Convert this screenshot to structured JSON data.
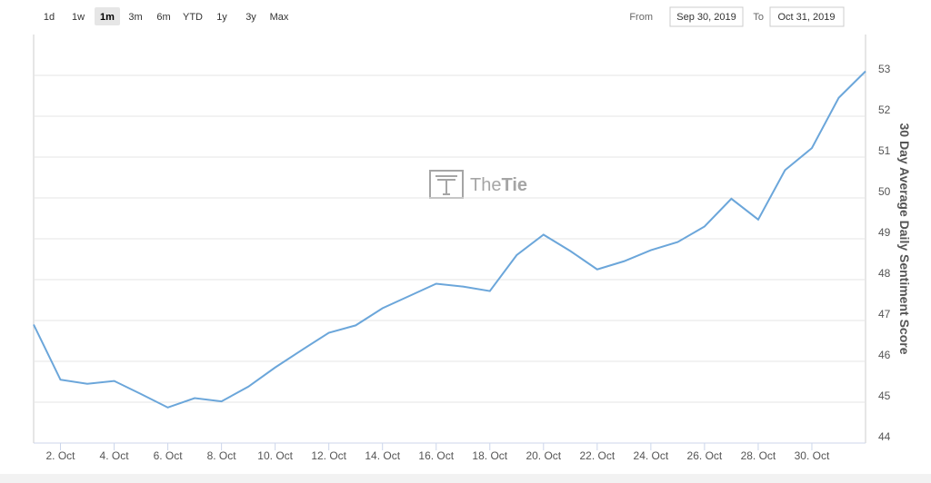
{
  "range_selector": {
    "buttons": [
      "1d",
      "1w",
      "1m",
      "3m",
      "6m",
      "YTD",
      "1y",
      "3y",
      "Max"
    ],
    "selected": 2
  },
  "date_range": {
    "from_label": "From",
    "from": "Sep 30, 2019",
    "to_label": "To",
    "to": "Oct 31, 2019"
  },
  "chart_data": {
    "type": "line",
    "y_label": "30 Day Average Daily Sentiment Score",
    "watermark": {
      "light": "The",
      "bold": "Tie"
    },
    "x": [
      1,
      2,
      3,
      4,
      5,
      6,
      7,
      8,
      9,
      10,
      11,
      12,
      13,
      14,
      15,
      16,
      17,
      18,
      19,
      20,
      21,
      22,
      23,
      24,
      25,
      26,
      27,
      28,
      29,
      30,
      31,
      32
    ],
    "series": [
      {
        "color": "#6ba6da",
        "values": [
          46.9,
          45.55,
          45.45,
          45.52,
          45.2,
          44.87,
          45.1,
          45.02,
          45.38,
          45.85,
          46.28,
          46.7,
          46.88,
          47.3,
          47.6,
          47.9,
          47.83,
          47.72,
          48.6,
          49.1,
          48.7,
          48.25,
          48.45,
          48.72,
          48.92,
          49.3,
          49.98,
          49.47,
          50.68,
          51.22,
          52.45,
          53.1
        ]
      }
    ],
    "xlim": [
      1,
      32
    ],
    "xticks": [
      {
        "value": 2,
        "label": "2. Oct"
      },
      {
        "value": 4,
        "label": "4. Oct"
      },
      {
        "value": 6,
        "label": "6. Oct"
      },
      {
        "value": 8,
        "label": "8. Oct"
      },
      {
        "value": 10,
        "label": "10. Oct"
      },
      {
        "value": 12,
        "label": "12. Oct"
      },
      {
        "value": 14,
        "label": "14. Oct"
      },
      {
        "value": 16,
        "label": "16. Oct"
      },
      {
        "value": 18,
        "label": "18. Oct"
      },
      {
        "value": 20,
        "label": "20. Oct"
      },
      {
        "value": 22,
        "label": "22. Oct"
      },
      {
        "value": 24,
        "label": "24. Oct"
      },
      {
        "value": 26,
        "label": "26. Oct"
      },
      {
        "value": 28,
        "label": "28. Oct"
      },
      {
        "value": 30,
        "label": "30. Oct"
      }
    ],
    "ylim": [
      44,
      54
    ],
    "yticks": [
      44,
      45,
      46,
      47,
      48,
      49,
      50,
      51,
      52,
      53
    ],
    "grid": true
  }
}
